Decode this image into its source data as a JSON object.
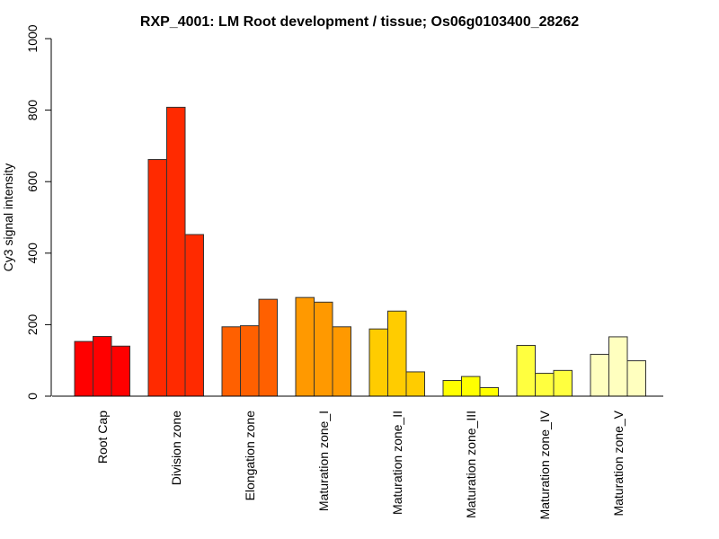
{
  "chart_data": {
    "type": "bar",
    "title": "RXP_4001: LM Root development / tissue; Os06g0103400_28262",
    "xlabel": "",
    "ylabel": "Cy3 signal intensity",
    "ylim": [
      0,
      1000
    ],
    "yticks": [
      0,
      200,
      400,
      600,
      800,
      1000
    ],
    "grid": false,
    "legend": null,
    "categories": [
      "Root Cap",
      "Division zone",
      "Elongation zone",
      "Maturation zone_I",
      "Maturation zone_II",
      "Maturation zone_III",
      "Maturation zone_IV",
      "Maturation zone_V"
    ],
    "colors": [
      "#FF0000",
      "#FF2A00",
      "#FF6000",
      "#FF9900",
      "#FFCC00",
      "#FFFF00",
      "#FFFF3F",
      "#FFFFBF"
    ],
    "replicates_per_category": 3,
    "values": [
      [
        153,
        167,
        140
      ],
      [
        662,
        808,
        452
      ],
      [
        194,
        197,
        271
      ],
      [
        276,
        263,
        194
      ],
      [
        188,
        238,
        68
      ],
      [
        44,
        55,
        24
      ],
      [
        142,
        64,
        72
      ],
      [
        117,
        166,
        99
      ]
    ]
  }
}
